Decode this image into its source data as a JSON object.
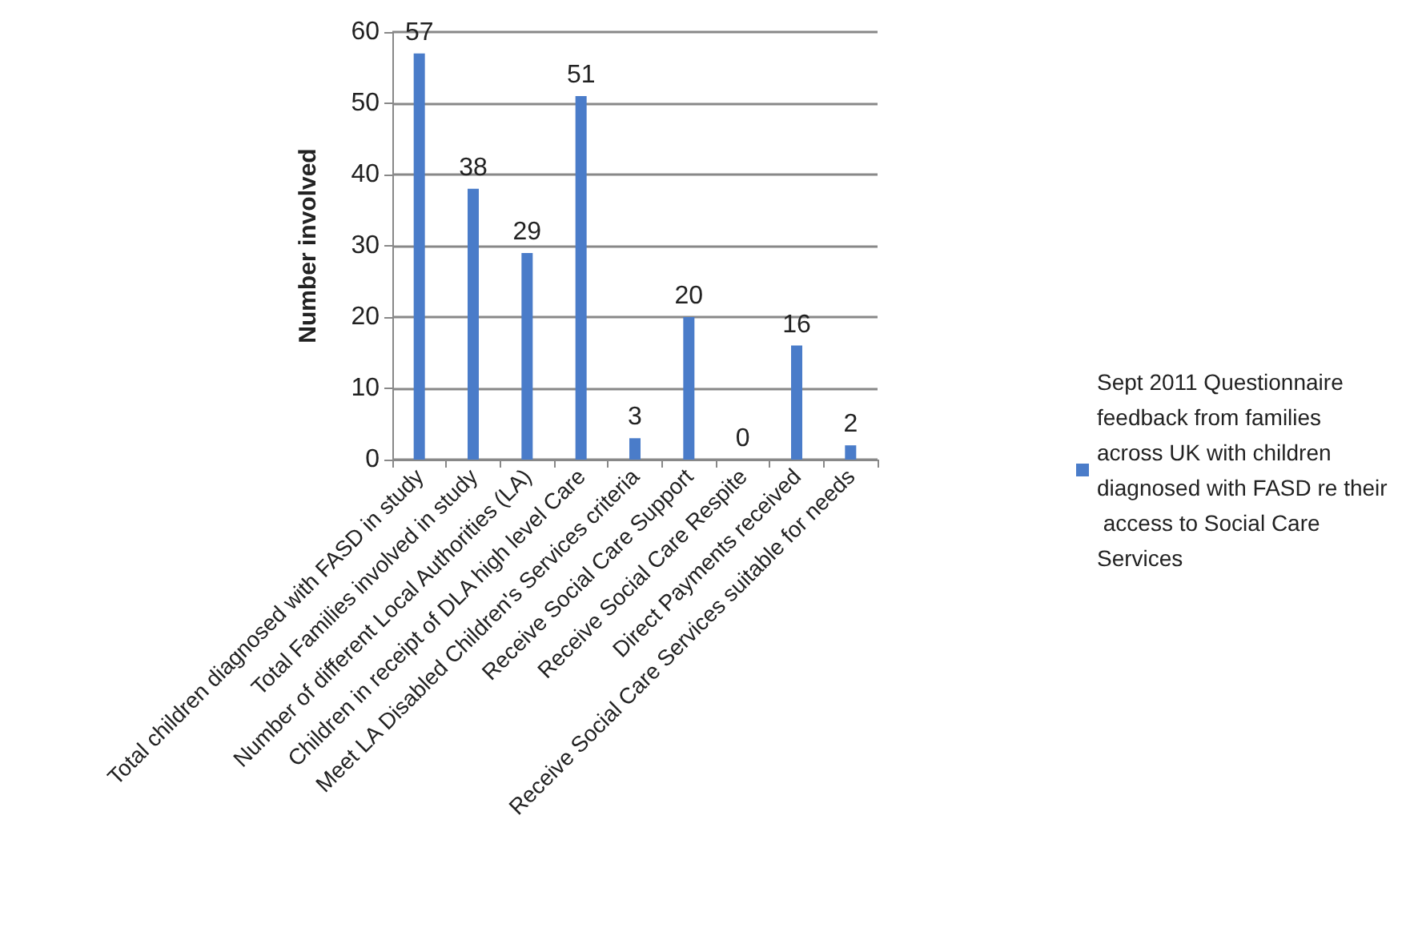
{
  "chart_data": {
    "type": "bar",
    "ylabel": "Number involved",
    "categories": [
      "Total children diagnosed with FASD in study",
      "Total Families involved in study",
      "Number of different Local Authorities (LA)",
      "Children in receipt of DLA high level Care",
      "Meet LA Disabled Children's Services criteria",
      "Receive Social Care Support",
      "Receive Social Care Respite",
      "Direct Payments received",
      "Receive Social Care Services suitable for needs"
    ],
    "series": [
      {
        "name": "Sept 2011 Questionnaire feedback from families across UK with children diagnosed with FASD re their access to Social Care Services",
        "color": "#4a7cc9",
        "values": [
          57,
          38,
          29,
          51,
          3,
          20,
          0,
          16,
          2
        ]
      }
    ],
    "ylim": [
      0,
      60
    ],
    "yticks": [
      0,
      10,
      20,
      30,
      40,
      50,
      60
    ],
    "grid": "y",
    "legend": "right",
    "data_labels": true
  }
}
